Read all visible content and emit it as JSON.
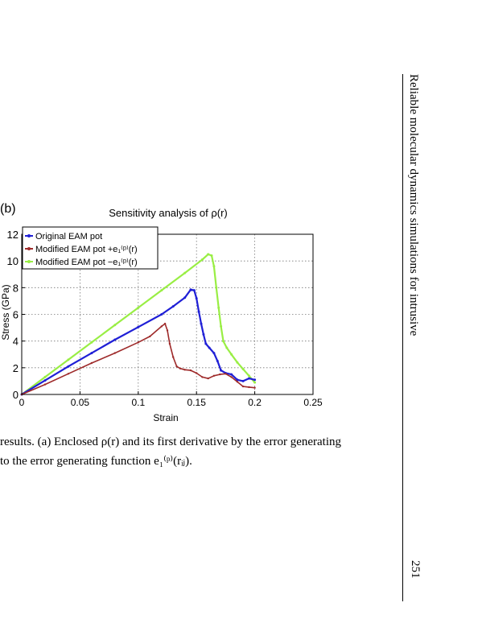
{
  "panel_label": "(b)",
  "caption": {
    "line1": "results. (a) Enclosed ρ(r) and its first derivative by the error generating",
    "line2": "to the error generating function e₁⁽ᵖ⁾(rᵢⱼ)."
  },
  "running_head": "Reliable molecular dynamics simulations for intrusive",
  "page_number": "251",
  "chart_data": {
    "type": "line",
    "title": "Sensitivity analysis of ρ(r)",
    "xlabel": "Strain",
    "ylabel": "Stress (GPa)",
    "xlim": [
      0,
      0.25
    ],
    "ylim": [
      0,
      12
    ],
    "xticks": [
      "0",
      "0.05",
      "0.1",
      "0.15",
      "0.2",
      "0.25"
    ],
    "yticks": [
      "0",
      "2",
      "4",
      "6",
      "8",
      "10",
      "12"
    ],
    "grid": true,
    "legend_position": "top-left",
    "series": [
      {
        "name": "Original EAM pot",
        "color": "#1f1fd6",
        "points": [
          [
            0,
            0
          ],
          [
            0.02,
            1.05
          ],
          [
            0.04,
            2.1
          ],
          [
            0.06,
            3.1
          ],
          [
            0.08,
            4.1
          ],
          [
            0.1,
            5.05
          ],
          [
            0.12,
            6.0
          ],
          [
            0.13,
            6.6
          ],
          [
            0.14,
            7.25
          ],
          [
            0.145,
            7.85
          ],
          [
            0.148,
            7.8
          ],
          [
            0.15,
            7.2
          ],
          [
            0.152,
            6.2
          ],
          [
            0.154,
            5.3
          ],
          [
            0.156,
            4.5
          ],
          [
            0.158,
            3.8
          ],
          [
            0.161,
            3.5
          ],
          [
            0.165,
            3.1
          ],
          [
            0.168,
            2.5
          ],
          [
            0.171,
            1.8
          ],
          [
            0.175,
            1.6
          ],
          [
            0.18,
            1.5
          ],
          [
            0.185,
            1.1
          ],
          [
            0.19,
            1.0
          ],
          [
            0.195,
            1.2
          ],
          [
            0.2,
            1.1
          ]
        ]
      },
      {
        "name": "Modified EAM pot +e₁⁽ᵖ⁾(r)",
        "color": "#9e2a2a",
        "points": [
          [
            0,
            0
          ],
          [
            0.02,
            0.75
          ],
          [
            0.04,
            1.55
          ],
          [
            0.06,
            2.35
          ],
          [
            0.08,
            3.1
          ],
          [
            0.1,
            3.9
          ],
          [
            0.11,
            4.35
          ],
          [
            0.12,
            5.1
          ],
          [
            0.123,
            5.3
          ],
          [
            0.125,
            4.8
          ],
          [
            0.127,
            3.8
          ],
          [
            0.13,
            2.8
          ],
          [
            0.133,
            2.1
          ],
          [
            0.136,
            1.95
          ],
          [
            0.14,
            1.85
          ],
          [
            0.145,
            1.8
          ],
          [
            0.15,
            1.6
          ],
          [
            0.155,
            1.3
          ],
          [
            0.16,
            1.2
          ],
          [
            0.165,
            1.4
          ],
          [
            0.17,
            1.5
          ],
          [
            0.175,
            1.55
          ],
          [
            0.18,
            1.3
          ],
          [
            0.185,
            0.95
          ],
          [
            0.19,
            0.6
          ],
          [
            0.195,
            0.55
          ],
          [
            0.2,
            0.5
          ]
        ]
      },
      {
        "name": "Modified EAM pot −e₁⁽ᵖ⁾(r)",
        "color": "#99ee44",
        "points": [
          [
            0,
            0
          ],
          [
            0.02,
            1.3
          ],
          [
            0.04,
            2.6
          ],
          [
            0.06,
            3.9
          ],
          [
            0.08,
            5.2
          ],
          [
            0.1,
            6.5
          ],
          [
            0.12,
            7.8
          ],
          [
            0.14,
            9.1
          ],
          [
            0.155,
            10.1
          ],
          [
            0.16,
            10.5
          ],
          [
            0.163,
            10.4
          ],
          [
            0.165,
            9.6
          ],
          [
            0.167,
            8.0
          ],
          [
            0.169,
            6.5
          ],
          [
            0.171,
            5.1
          ],
          [
            0.173,
            4.0
          ],
          [
            0.176,
            3.5
          ],
          [
            0.18,
            3.0
          ],
          [
            0.185,
            2.4
          ],
          [
            0.19,
            1.9
          ],
          [
            0.195,
            1.4
          ],
          [
            0.2,
            0.9
          ]
        ]
      }
    ]
  }
}
